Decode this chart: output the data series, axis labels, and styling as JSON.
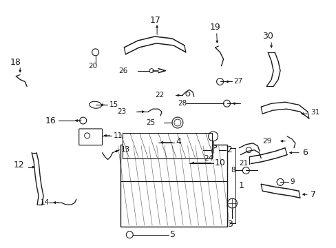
{
  "bg_color": "#ffffff",
  "line_color": "#1a1a1a",
  "fig_width": 4.89,
  "fig_height": 3.6,
  "dpi": 100,
  "label_fs": 9,
  "small_fs": 7.5
}
